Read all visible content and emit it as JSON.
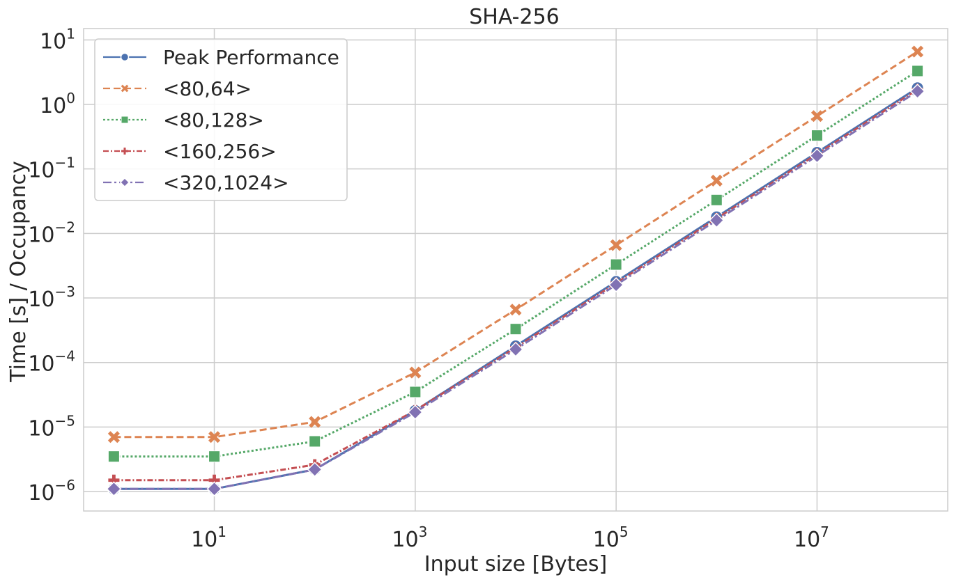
{
  "chart_data": {
    "type": "line",
    "title": "SHA-256",
    "xlabel": "Input size [Bytes]",
    "ylabel": "Time [s] / Occupancy",
    "x_scale": "log",
    "y_scale": "log",
    "xlim": [
      0.5,
      200000000
    ],
    "ylim": [
      5e-07,
      15
    ],
    "grid": true,
    "legend_position": "top-left",
    "x": [
      1,
      10,
      100,
      1000,
      10000,
      100000,
      1000000,
      10000000,
      100000000
    ],
    "x_ticks": [
      {
        "value": 10,
        "base": "10",
        "exp": "1"
      },
      {
        "value": 1000,
        "base": "10",
        "exp": "3"
      },
      {
        "value": 100000,
        "base": "10",
        "exp": "5"
      },
      {
        "value": 10000000,
        "base": "10",
        "exp": "7"
      }
    ],
    "y_ticks": [
      {
        "value": 1e-06,
        "base": "10",
        "exp": "−6"
      },
      {
        "value": 1e-05,
        "base": "10",
        "exp": "−5"
      },
      {
        "value": 0.0001,
        "base": "10",
        "exp": "−4"
      },
      {
        "value": 0.001,
        "base": "10",
        "exp": "−3"
      },
      {
        "value": 0.01,
        "base": "10",
        "exp": "−2"
      },
      {
        "value": 0.1,
        "base": "10",
        "exp": "−1"
      },
      {
        "value": 1,
        "base": "10",
        "exp": "0"
      },
      {
        "value": 10,
        "base": "10",
        "exp": "1"
      }
    ],
    "series": [
      {
        "name": "Peak Performance",
        "color": "#4c72b0",
        "dash": "solid",
        "marker": "circle",
        "values": [
          1.1e-06,
          1.1e-06,
          2.2e-06,
          1.8e-05,
          0.00018,
          0.0018,
          0.018,
          0.18,
          1.8
        ]
      },
      {
        "name": "<80,64>",
        "color": "#dd8452",
        "dash": "dashed",
        "marker": "x",
        "values": [
          7e-06,
          7e-06,
          1.2e-05,
          7e-05,
          0.00066,
          0.0066,
          0.066,
          0.66,
          6.6
        ]
      },
      {
        "name": "<80,128>",
        "color": "#55a868",
        "dash": "dotted",
        "marker": "square",
        "values": [
          3.5e-06,
          3.5e-06,
          6e-06,
          3.5e-05,
          0.00033,
          0.0033,
          0.033,
          0.33,
          3.3
        ]
      },
      {
        "name": "<160,256>",
        "color": "#c44e52",
        "dash": "dashdot",
        "marker": "plus",
        "values": [
          1.5e-06,
          1.5e-06,
          2.6e-06,
          1.8e-05,
          0.00017,
          0.0017,
          0.017,
          0.17,
          1.7
        ]
      },
      {
        "name": "<320,1024>",
        "color": "#8172b3",
        "dash": "dashdotlong",
        "marker": "diamond",
        "values": [
          1.1e-06,
          1.1e-06,
          2.2e-06,
          1.7e-05,
          0.00016,
          0.0016,
          0.016,
          0.16,
          1.6
        ]
      }
    ]
  }
}
